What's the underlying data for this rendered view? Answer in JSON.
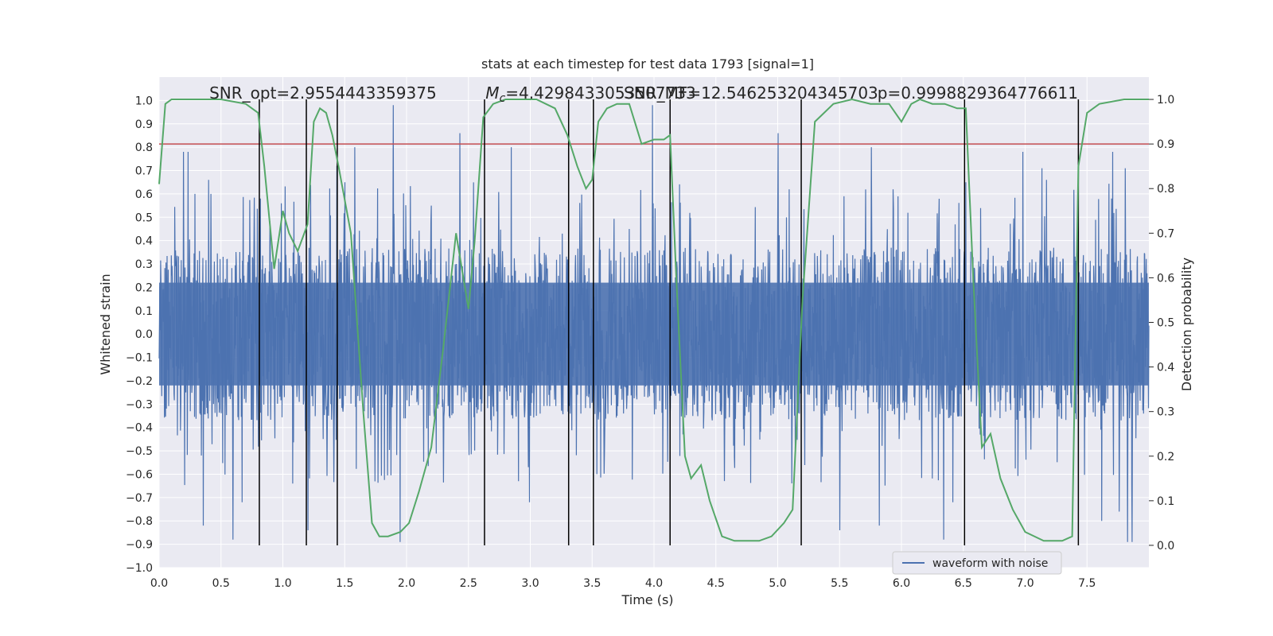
{
  "chart_data": {
    "type": "line",
    "title": "stats at each timestep for test data 1793 [signal=1]",
    "xlabel": "Time (s)",
    "ylabel": "Whitened strain",
    "y2label": "Detection probability",
    "xlim": [
      0,
      8.0
    ],
    "ylim": [
      -1.0,
      1.1
    ],
    "y2lim": [
      -0.05,
      1.05
    ],
    "xticks": [
      "0.0",
      "0.5",
      "1.0",
      "1.5",
      "2.0",
      "2.5",
      "3.0",
      "3.5",
      "4.0",
      "4.5",
      "5.0",
      "5.5",
      "6.0",
      "6.5",
      "7.0",
      "7.5"
    ],
    "yticks": [
      "−1.0",
      "−0.9",
      "−0.8",
      "−0.7",
      "−0.6",
      "−0.5",
      "−0.4",
      "−0.3",
      "−0.2",
      "−0.1",
      "0.0",
      "0.1",
      "0.2",
      "0.3",
      "0.4",
      "0.5",
      "0.6",
      "0.7",
      "0.8",
      "0.9",
      "1.0"
    ],
    "y2ticks": [
      "0.0",
      "0.1",
      "0.2",
      "0.3",
      "0.4",
      "0.5",
      "0.6",
      "0.7",
      "0.8",
      "0.9",
      "1.0"
    ],
    "grid": true,
    "legend": {
      "placement": "lower-right",
      "entries": [
        {
          "label": "waveform with noise",
          "color": "#4c72b0"
        }
      ]
    },
    "annotations": [
      {
        "text": "SNR_opt=2.9554443359375",
        "x": 0.2
      },
      {
        "text": "$M_c$=4.4298433053507733",
        "math_symbol": "M",
        "math_sub": "c",
        "rest": "=4.4298433053507733",
        "x": 2.6
      },
      {
        "text": "SNR_MF=12.546253204345703",
        "x": 3.55
      },
      {
        "text": "p=0.9998829364776611",
        "x": 5.6
      }
    ],
    "threshold": {
      "y2": 0.9,
      "color": "#c44e52"
    },
    "event_lines_x": [
      0.81,
      1.19,
      1.44,
      2.63,
      3.31,
      3.51,
      4.13,
      5.19,
      6.51,
      7.43
    ],
    "event_line_y2_range": [
      0.0,
      1.0
    ],
    "strain_envelope": {
      "typical_lower": -0.35,
      "typical_upper": 0.35,
      "peaks_upper": [
        0.68,
        0.65,
        0.58,
        0.62,
        0.71,
        0.6,
        0.78,
        0.86,
        0.72,
        0.8,
        0.98,
        0.66
      ],
      "peaks_lower": [
        -0.71,
        -0.72,
        -0.75,
        -0.82,
        -0.76,
        -0.84,
        -0.88,
        -0.84,
        -0.8,
        -0.89,
        -0.81,
        -0.72
      ]
    },
    "series": [
      {
        "name": "waveform with noise",
        "axis": "y",
        "color": "#4c72b0",
        "kind": "dense-noise"
      },
      {
        "axis": "y2",
        "color": "#55a868",
        "x": [
          0.0,
          0.05,
          0.1,
          0.3,
          0.5,
          0.7,
          0.8,
          0.85,
          0.93,
          1.0,
          1.05,
          1.12,
          1.2,
          1.25,
          1.3,
          1.35,
          1.4,
          1.45,
          1.55,
          1.65,
          1.72,
          1.78,
          1.85,
          1.95,
          2.02,
          2.1,
          2.2,
          2.3,
          2.4,
          2.5,
          2.55,
          2.62,
          2.7,
          2.8,
          2.9,
          3.05,
          3.2,
          3.3,
          3.38,
          3.45,
          3.5,
          3.55,
          3.62,
          3.7,
          3.8,
          3.9,
          4.0,
          4.08,
          4.13,
          4.18,
          4.25,
          4.3,
          4.38,
          4.45,
          4.55,
          4.65,
          4.75,
          4.85,
          4.95,
          5.05,
          5.12,
          5.2,
          5.3,
          5.45,
          5.6,
          5.75,
          5.9,
          6.0,
          6.08,
          6.15,
          6.25,
          6.35,
          6.45,
          6.52,
          6.58,
          6.65,
          6.72,
          6.8,
          6.9,
          7.0,
          7.15,
          7.3,
          7.38,
          7.43,
          7.5,
          7.6,
          7.8,
          8.0
        ],
        "values": [
          0.81,
          0.99,
          1.0,
          1.0,
          1.0,
          0.99,
          0.97,
          0.85,
          0.62,
          0.75,
          0.7,
          0.66,
          0.72,
          0.95,
          0.98,
          0.97,
          0.92,
          0.85,
          0.7,
          0.3,
          0.05,
          0.02,
          0.02,
          0.03,
          0.05,
          0.12,
          0.22,
          0.45,
          0.7,
          0.53,
          0.68,
          0.96,
          0.99,
          1.0,
          1.0,
          1.0,
          0.98,
          0.92,
          0.85,
          0.8,
          0.82,
          0.95,
          0.98,
          0.99,
          0.99,
          0.9,
          0.91,
          0.91,
          0.92,
          0.6,
          0.2,
          0.15,
          0.18,
          0.1,
          0.02,
          0.01,
          0.01,
          0.01,
          0.02,
          0.05,
          0.08,
          0.55,
          0.95,
          0.99,
          1.0,
          0.99,
          0.99,
          0.95,
          0.99,
          1.0,
          0.99,
          0.99,
          0.98,
          0.98,
          0.6,
          0.22,
          0.25,
          0.15,
          0.08,
          0.03,
          0.01,
          0.01,
          0.02,
          0.85,
          0.97,
          0.99,
          1.0,
          1.0
        ]
      }
    ]
  }
}
